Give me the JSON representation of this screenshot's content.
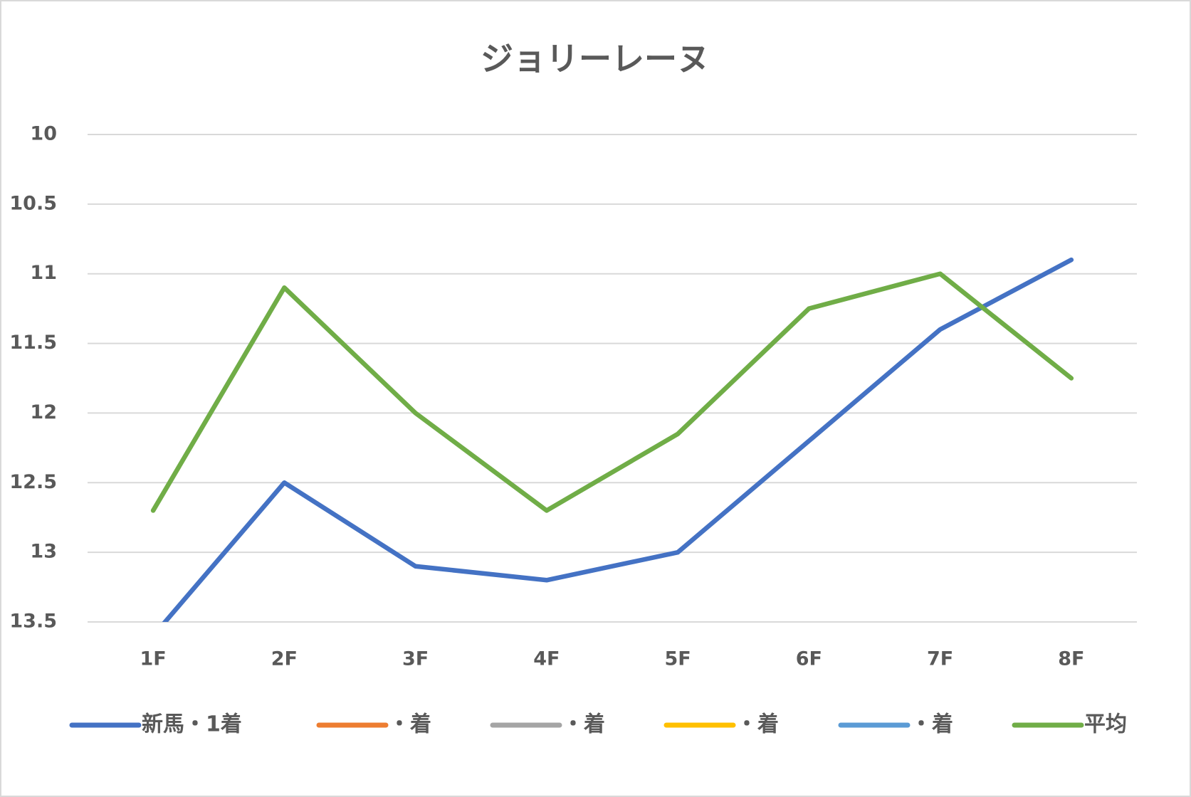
{
  "chart_data": {
    "type": "line",
    "title": "ジョリーレーヌ",
    "categories": [
      "1F",
      "2F",
      "3F",
      "4F",
      "5F",
      "6F",
      "7F",
      "8F"
    ],
    "series": [
      {
        "name": "新馬・1着",
        "color": "#4472c4",
        "values": [
          13.6,
          12.5,
          13.1,
          13.2,
          13.0,
          12.2,
          11.4,
          10.9
        ]
      },
      {
        "name": "・着",
        "color": "#ed7d31",
        "values": [
          null,
          null,
          null,
          null,
          null,
          null,
          null,
          null
        ]
      },
      {
        "name": "・着",
        "color": "#a5a5a5",
        "values": [
          null,
          null,
          null,
          null,
          null,
          null,
          null,
          null
        ]
      },
      {
        "name": "・着",
        "color": "#ffc000",
        "values": [
          null,
          null,
          null,
          null,
          null,
          null,
          null,
          null
        ]
      },
      {
        "name": "・着",
        "color": "#5b9bd5",
        "values": [
          null,
          null,
          null,
          null,
          null,
          null,
          null,
          null
        ]
      },
      {
        "name": "平均",
        "color": "#70ad47",
        "values": [
          12.7,
          11.1,
          12.0,
          12.7,
          12.15,
          11.25,
          11.0,
          11.75
        ]
      }
    ],
    "ylim": [
      10,
      13.5
    ],
    "yticks": [
      10,
      10.5,
      11,
      11.5,
      12,
      12.5,
      13,
      13.5
    ],
    "y_reversed": true,
    "grid": true,
    "legend": "bottom"
  }
}
